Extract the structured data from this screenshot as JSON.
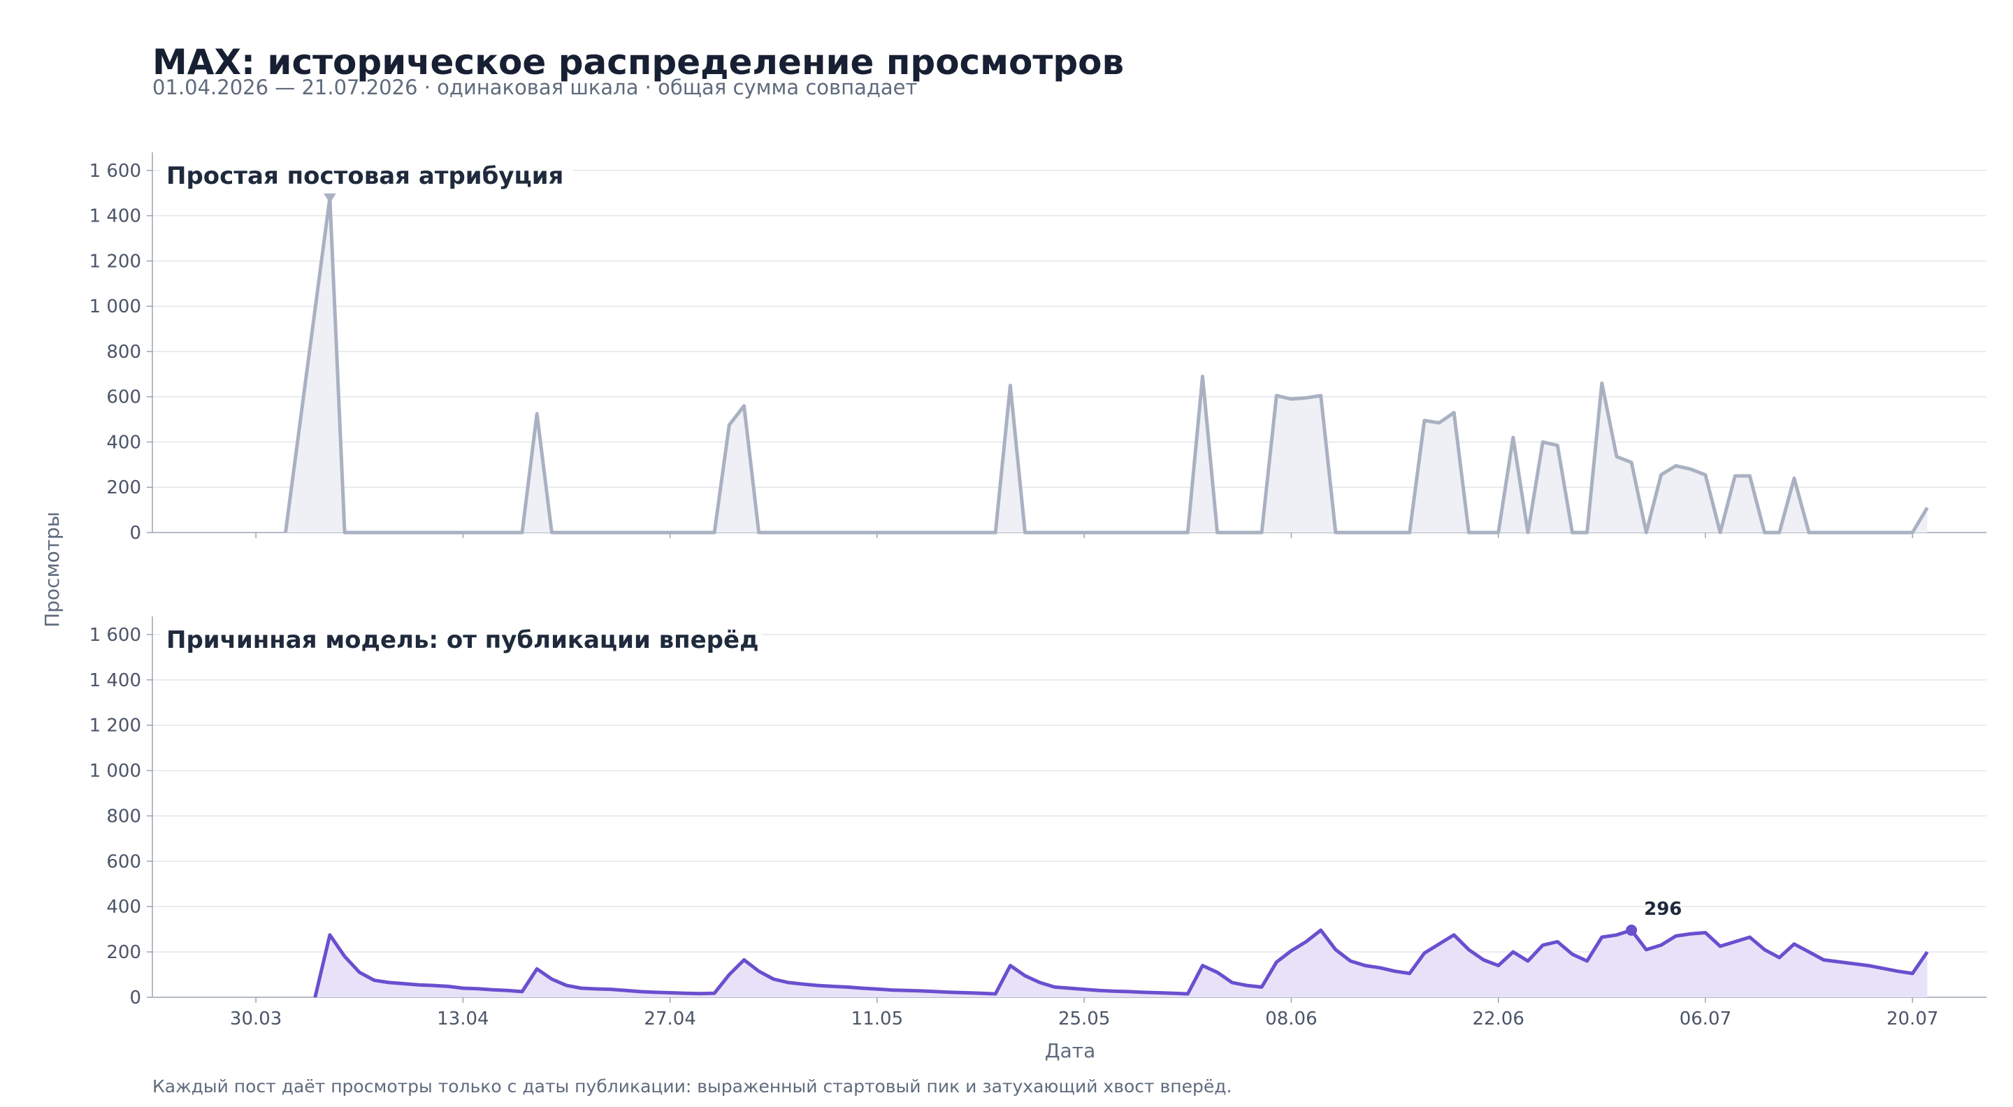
{
  "title": "MAX: историческое распределение просмотров",
  "subtitle": "01.04.2026 — 21.07.2026 · одинаковая шкала · общая сумма совпадает",
  "footer": "Каждый пост даёт просмотры только с даты публикации: выраженный стартовый пик и затухающий хвост вперёд.",
  "colors": {
    "top_line": "#a9b1c1",
    "top_fill": "#eef0f5",
    "bottom_line": "#6a4fcf",
    "bottom_fill": "#e8e2f8",
    "grid": "#e3e6eb",
    "axis": "#9aa3b2"
  },
  "chart_data": {
    "type": "area",
    "x_start": "2026-04-01",
    "x_end": "2026-07-21",
    "x_tick_labels": [
      "30.03",
      "13.04",
      "27.04",
      "11.05",
      "25.05",
      "08.06",
      "22.06",
      "06.07",
      "20.07"
    ],
    "y_ticks": [
      0,
      200,
      400,
      600,
      800,
      1000,
      1200,
      1400,
      1600
    ],
    "y_tick_labels": [
      "0",
      "200",
      "400",
      "600",
      "800",
      "1 000",
      "1 200",
      "1 400",
      "1 600"
    ],
    "ylim": [
      0,
      1680
    ],
    "ylabel": "Просмотры",
    "xlabel": "Дата",
    "panels": [
      {
        "title": "Простая постовая атрибуция",
        "marker": {
          "date": "2026-04-04",
          "value": 1480,
          "shape": "triangle-down"
        },
        "points": [
          [
            "2026-04-01",
            0
          ],
          [
            "2026-04-04",
            1480
          ],
          [
            "2026-04-05",
            0
          ],
          [
            "2026-04-17",
            0
          ],
          [
            "2026-04-18",
            525
          ],
          [
            "2026-04-19",
            0
          ],
          [
            "2026-04-30",
            0
          ],
          [
            "2026-05-01",
            475
          ],
          [
            "2026-05-02",
            560
          ],
          [
            "2026-05-03",
            0
          ],
          [
            "2026-05-19",
            0
          ],
          [
            "2026-05-20",
            650
          ],
          [
            "2026-05-21",
            0
          ],
          [
            "2026-06-01",
            0
          ],
          [
            "2026-06-02",
            690
          ],
          [
            "2026-06-03",
            0
          ],
          [
            "2026-06-06",
            0
          ],
          [
            "2026-06-07",
            605
          ],
          [
            "2026-06-08",
            590
          ],
          [
            "2026-06-09",
            595
          ],
          [
            "2026-06-10",
            605
          ],
          [
            "2026-06-11",
            0
          ],
          [
            "2026-06-16",
            0
          ],
          [
            "2026-06-17",
            495
          ],
          [
            "2026-06-18",
            485
          ],
          [
            "2026-06-19",
            530
          ],
          [
            "2026-06-20",
            0
          ],
          [
            "2026-06-22",
            0
          ],
          [
            "2026-06-23",
            420
          ],
          [
            "2026-06-24",
            0
          ],
          [
            "2026-06-25",
            400
          ],
          [
            "2026-06-26",
            385
          ],
          [
            "2026-06-27",
            0
          ],
          [
            "2026-06-28",
            0
          ],
          [
            "2026-06-29",
            660
          ],
          [
            "2026-06-30",
            335
          ],
          [
            "2026-07-01",
            310
          ],
          [
            "2026-07-02",
            0
          ],
          [
            "2026-07-03",
            255
          ],
          [
            "2026-07-04",
            295
          ],
          [
            "2026-07-05",
            280
          ],
          [
            "2026-07-06",
            255
          ],
          [
            "2026-07-07",
            0
          ],
          [
            "2026-07-08",
            250
          ],
          [
            "2026-07-09",
            250
          ],
          [
            "2026-07-10",
            0
          ],
          [
            "2026-07-11",
            0
          ],
          [
            "2026-07-12",
            240
          ],
          [
            "2026-07-13",
            0
          ],
          [
            "2026-07-20",
            0
          ],
          [
            "2026-07-21",
            110
          ]
        ]
      },
      {
        "title": "Причинная модель: от публикации вперёд",
        "annotation": {
          "date": "2026-07-01",
          "value": 296,
          "label": "296"
        },
        "points": [
          [
            "2026-04-03",
            0
          ],
          [
            "2026-04-04",
            275
          ],
          [
            "2026-04-05",
            180
          ],
          [
            "2026-04-06",
            110
          ],
          [
            "2026-04-07",
            75
          ],
          [
            "2026-04-08",
            65
          ],
          [
            "2026-04-09",
            60
          ],
          [
            "2026-04-10",
            55
          ],
          [
            "2026-04-11",
            52
          ],
          [
            "2026-04-12",
            48
          ],
          [
            "2026-04-13",
            40
          ],
          [
            "2026-04-14",
            38
          ],
          [
            "2026-04-15",
            33
          ],
          [
            "2026-04-16",
            30
          ],
          [
            "2026-04-17",
            25
          ],
          [
            "2026-04-18",
            125
          ],
          [
            "2026-04-19",
            80
          ],
          [
            "2026-04-20",
            52
          ],
          [
            "2026-04-21",
            40
          ],
          [
            "2026-04-22",
            37
          ],
          [
            "2026-04-23",
            35
          ],
          [
            "2026-04-24",
            30
          ],
          [
            "2026-04-25",
            25
          ],
          [
            "2026-04-26",
            22
          ],
          [
            "2026-04-27",
            20
          ],
          [
            "2026-04-28",
            18
          ],
          [
            "2026-04-29",
            16
          ],
          [
            "2026-04-30",
            18
          ],
          [
            "2026-05-01",
            100
          ],
          [
            "2026-05-02",
            165
          ],
          [
            "2026-05-03",
            115
          ],
          [
            "2026-05-04",
            80
          ],
          [
            "2026-05-05",
            65
          ],
          [
            "2026-05-06",
            58
          ],
          [
            "2026-05-07",
            52
          ],
          [
            "2026-05-08",
            48
          ],
          [
            "2026-05-09",
            45
          ],
          [
            "2026-05-10",
            40
          ],
          [
            "2026-05-11",
            36
          ],
          [
            "2026-05-12",
            32
          ],
          [
            "2026-05-13",
            30
          ],
          [
            "2026-05-14",
            28
          ],
          [
            "2026-05-15",
            25
          ],
          [
            "2026-05-16",
            22
          ],
          [
            "2026-05-17",
            20
          ],
          [
            "2026-05-18",
            18
          ],
          [
            "2026-05-19",
            15
          ],
          [
            "2026-05-20",
            140
          ],
          [
            "2026-05-21",
            95
          ],
          [
            "2026-05-22",
            65
          ],
          [
            "2026-05-23",
            45
          ],
          [
            "2026-05-24",
            40
          ],
          [
            "2026-05-25",
            35
          ],
          [
            "2026-05-26",
            30
          ],
          [
            "2026-05-27",
            27
          ],
          [
            "2026-05-28",
            25
          ],
          [
            "2026-05-29",
            22
          ],
          [
            "2026-05-30",
            20
          ],
          [
            "2026-05-31",
            18
          ],
          [
            "2026-06-01",
            15
          ],
          [
            "2026-06-02",
            140
          ],
          [
            "2026-06-03",
            110
          ],
          [
            "2026-06-04",
            65
          ],
          [
            "2026-06-05",
            52
          ],
          [
            "2026-06-06",
            45
          ],
          [
            "2026-06-07",
            155
          ],
          [
            "2026-06-08",
            205
          ],
          [
            "2026-06-09",
            245
          ],
          [
            "2026-06-10",
            296
          ],
          [
            "2026-06-11",
            210
          ],
          [
            "2026-06-12",
            160
          ],
          [
            "2026-06-13",
            140
          ],
          [
            "2026-06-14",
            130
          ],
          [
            "2026-06-15",
            115
          ],
          [
            "2026-06-16",
            105
          ],
          [
            "2026-06-17",
            195
          ],
          [
            "2026-06-18",
            235
          ],
          [
            "2026-06-19",
            275
          ],
          [
            "2026-06-20",
            210
          ],
          [
            "2026-06-21",
            165
          ],
          [
            "2026-06-22",
            140
          ],
          [
            "2026-06-23",
            200
          ],
          [
            "2026-06-24",
            160
          ],
          [
            "2026-06-25",
            230
          ],
          [
            "2026-06-26",
            245
          ],
          [
            "2026-06-27",
            190
          ],
          [
            "2026-06-28",
            160
          ],
          [
            "2026-06-29",
            265
          ],
          [
            "2026-06-30",
            275
          ],
          [
            "2026-07-01",
            296
          ],
          [
            "2026-07-02",
            210
          ],
          [
            "2026-07-03",
            230
          ],
          [
            "2026-07-04",
            270
          ],
          [
            "2026-07-05",
            280
          ],
          [
            "2026-07-06",
            285
          ],
          [
            "2026-07-07",
            225
          ],
          [
            "2026-07-08",
            245
          ],
          [
            "2026-07-09",
            265
          ],
          [
            "2026-07-10",
            210
          ],
          [
            "2026-07-11",
            175
          ],
          [
            "2026-07-12",
            235
          ],
          [
            "2026-07-13",
            200
          ],
          [
            "2026-07-14",
            165
          ],
          [
            "2026-07-17",
            140
          ],
          [
            "2026-07-19",
            115
          ],
          [
            "2026-07-20",
            105
          ],
          [
            "2026-07-21",
            200
          ]
        ]
      }
    ]
  }
}
